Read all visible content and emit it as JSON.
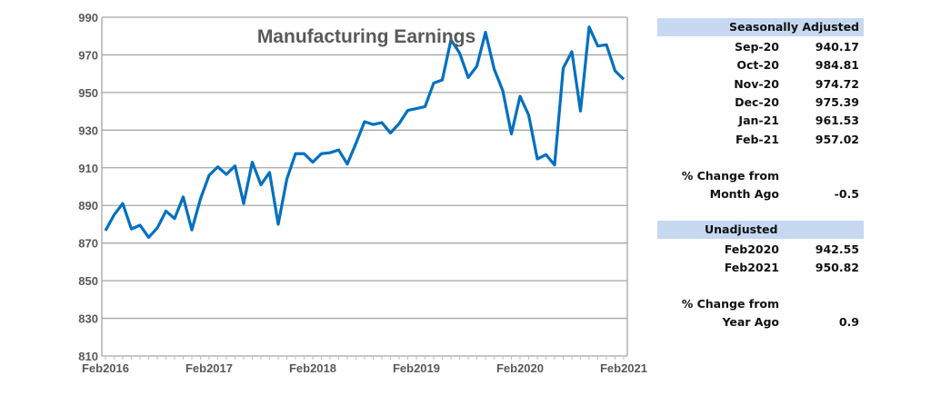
{
  "chart_data": {
    "type": "line",
    "title": "Manufacturing Earnings",
    "xlabel": "",
    "ylabel": "",
    "ylim": [
      810,
      990
    ],
    "yticks": [
      810,
      830,
      850,
      870,
      890,
      910,
      930,
      950,
      970,
      990
    ],
    "xtick_labels": [
      "Feb2016",
      "Feb2017",
      "Feb2018",
      "Feb2019",
      "Feb2020",
      "Feb2021"
    ],
    "grid": true,
    "color": "#0070c0",
    "x_start": "Feb2016",
    "x_end": "Feb2021",
    "series": [
      {
        "name": "Manufacturing Earnings",
        "values": [
          876.6,
          885,
          891,
          877.5,
          879.5,
          873,
          878,
          887,
          883,
          894.5,
          877,
          893.5,
          906,
          910.5,
          906.5,
          911,
          891,
          913,
          901,
          907.5,
          880,
          904,
          917.5,
          917.5,
          913,
          917.5,
          918,
          919.5,
          912,
          923,
          934.5,
          933,
          934,
          928.5,
          933.5,
          940.5,
          941.5,
          942.5,
          955,
          956.7,
          978,
          971,
          958,
          964,
          982,
          962.5,
          951,
          928,
          948,
          938,
          914.7,
          917,
          911.5,
          963,
          971.7,
          940.17,
          984.81,
          974.72,
          975.39,
          961.53,
          957.02
        ]
      }
    ]
  },
  "table": {
    "seasonal_header": "Seasonally Adjusted",
    "seasonal_rows": [
      {
        "label": "Sep-20",
        "value": "940.17"
      },
      {
        "label": "Oct-20",
        "value": "984.81"
      },
      {
        "label": "Nov-20",
        "value": "974.72"
      },
      {
        "label": "Dec-20",
        "value": "975.39"
      },
      {
        "label": "Jan-21",
        "value": "961.53"
      },
      {
        "label": "Feb-21",
        "value": "957.02"
      }
    ],
    "month_change_label1": "% Change from",
    "month_change_label2": "Month Ago",
    "month_change_value": "-0.5",
    "unadjusted_header": "Unadjusted",
    "unadjusted_rows": [
      {
        "label": "Feb2020",
        "value": "942.55"
      },
      {
        "label": "Feb2021",
        "value": "950.82"
      }
    ],
    "year_change_label1": "% Change from",
    "year_change_label2": "Year Ago",
    "year_change_value": "0.9"
  }
}
